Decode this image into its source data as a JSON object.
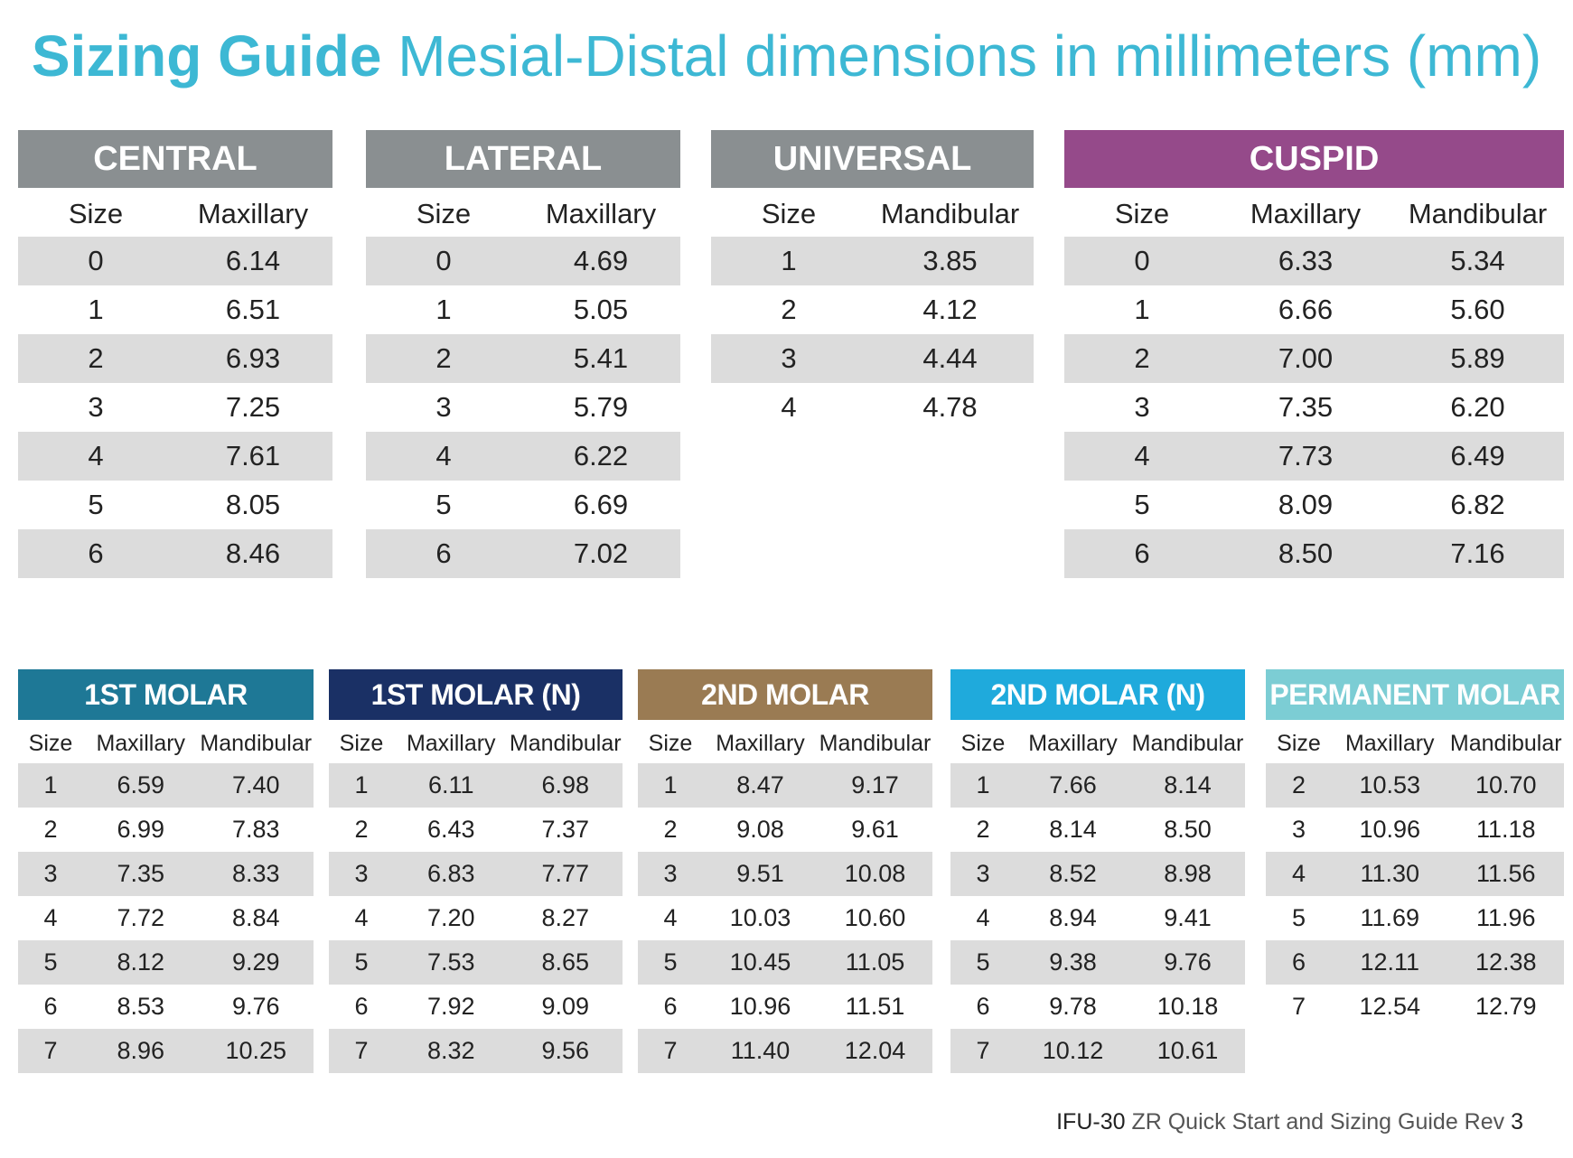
{
  "title": {
    "bold": "Sizing Guide",
    "light": "Mesial-Distal dimensions in millimeters (mm)"
  },
  "colors": {
    "title": "#3db8d4",
    "gray": "#8a8f91",
    "cuspid": "#954a8a",
    "molar1": "#1e7896",
    "molar1n": "#1a3065",
    "molar2": "#9a7b53",
    "molar2n": "#1faadc",
    "permanent": "#7ccdd4",
    "shade": "#dcdcdc"
  },
  "tables_top": [
    {
      "name": "CENTRAL",
      "color": "#8a8f91",
      "cols": [
        "Size",
        "Maxillary"
      ],
      "rows": [
        [
          "0",
          "6.14"
        ],
        [
          "1",
          "6.51"
        ],
        [
          "2",
          "6.93"
        ],
        [
          "3",
          "7.25"
        ],
        [
          "4",
          "7.61"
        ],
        [
          "5",
          "8.05"
        ],
        [
          "6",
          "8.46"
        ]
      ]
    },
    {
      "name": "LATERAL",
      "color": "#8a8f91",
      "cols": [
        "Size",
        "Maxillary"
      ],
      "rows": [
        [
          "0",
          "4.69"
        ],
        [
          "1",
          "5.05"
        ],
        [
          "2",
          "5.41"
        ],
        [
          "3",
          "5.79"
        ],
        [
          "4",
          "6.22"
        ],
        [
          "5",
          "6.69"
        ],
        [
          "6",
          "7.02"
        ]
      ]
    },
    {
      "name": "UNIVERSAL",
      "color": "#8a8f91",
      "cols": [
        "Size",
        "Mandibular"
      ],
      "rows": [
        [
          "1",
          "3.85"
        ],
        [
          "2",
          "4.12"
        ],
        [
          "3",
          "4.44"
        ],
        [
          "4",
          "4.78"
        ]
      ]
    },
    {
      "name": "CUSPID",
      "color": "#954a8a",
      "cols": [
        "Size",
        "Maxillary",
        "Mandibular"
      ],
      "rows": [
        [
          "0",
          "6.33",
          "5.34"
        ],
        [
          "1",
          "6.66",
          "5.60"
        ],
        [
          "2",
          "7.00",
          "5.89"
        ],
        [
          "3",
          "7.35",
          "6.20"
        ],
        [
          "4",
          "7.73",
          "6.49"
        ],
        [
          "5",
          "8.09",
          "6.82"
        ],
        [
          "6",
          "8.50",
          "7.16"
        ]
      ]
    }
  ],
  "tables_bottom": [
    {
      "name": "1ST MOLAR",
      "color": "#1e7896",
      "cols": [
        "Size",
        "Maxillary",
        "Mandibular"
      ],
      "rows": [
        [
          "1",
          "6.59",
          "7.40"
        ],
        [
          "2",
          "6.99",
          "7.83"
        ],
        [
          "3",
          "7.35",
          "8.33"
        ],
        [
          "4",
          "7.72",
          "8.84"
        ],
        [
          "5",
          "8.12",
          "9.29"
        ],
        [
          "6",
          "8.53",
          "9.76"
        ],
        [
          "7",
          "8.96",
          "10.25"
        ]
      ]
    },
    {
      "name": "1ST MOLAR (N)",
      "color": "#1a3065",
      "cols": [
        "Size",
        "Maxillary",
        "Mandibular"
      ],
      "rows": [
        [
          "1",
          "6.11",
          "6.98"
        ],
        [
          "2",
          "6.43",
          "7.37"
        ],
        [
          "3",
          "6.83",
          "7.77"
        ],
        [
          "4",
          "7.20",
          "8.27"
        ],
        [
          "5",
          "7.53",
          "8.65"
        ],
        [
          "6",
          "7.92",
          "9.09"
        ],
        [
          "7",
          "8.32",
          "9.56"
        ]
      ]
    },
    {
      "name": "2ND MOLAR",
      "color": "#9a7b53",
      "cols": [
        "Size",
        "Maxillary",
        "Mandibular"
      ],
      "rows": [
        [
          "1",
          "8.47",
          "9.17"
        ],
        [
          "2",
          "9.08",
          "9.61"
        ],
        [
          "3",
          "9.51",
          "10.08"
        ],
        [
          "4",
          "10.03",
          "10.60"
        ],
        [
          "5",
          "10.45",
          "11.05"
        ],
        [
          "6",
          "10.96",
          "11.51"
        ],
        [
          "7",
          "11.40",
          "12.04"
        ]
      ]
    },
    {
      "name": "2ND MOLAR (N)",
      "color": "#1faadc",
      "cols": [
        "Size",
        "Maxillary",
        "Mandibular"
      ],
      "rows": [
        [
          "1",
          "7.66",
          "8.14"
        ],
        [
          "2",
          "8.14",
          "8.50"
        ],
        [
          "3",
          "8.52",
          "8.98"
        ],
        [
          "4",
          "8.94",
          "9.41"
        ],
        [
          "5",
          "9.38",
          "9.76"
        ],
        [
          "6",
          "9.78",
          "10.18"
        ],
        [
          "7",
          "10.12",
          "10.61"
        ]
      ]
    },
    {
      "name": "PERMANENT MOLAR",
      "color": "#7ccdd4",
      "cols": [
        "Size",
        "Maxillary",
        "Mandibular"
      ],
      "rows": [
        [
          "2",
          "10.53",
          "10.70"
        ],
        [
          "3",
          "10.96",
          "11.18"
        ],
        [
          "4",
          "11.30",
          "11.56"
        ],
        [
          "5",
          "11.69",
          "11.96"
        ],
        [
          "6",
          "12.11",
          "12.38"
        ],
        [
          "7",
          "12.54",
          "12.79"
        ]
      ]
    }
  ],
  "footer": {
    "code": "IFU-30",
    "text": "ZR Quick Start and Sizing Guide Rev",
    "page": "3"
  }
}
